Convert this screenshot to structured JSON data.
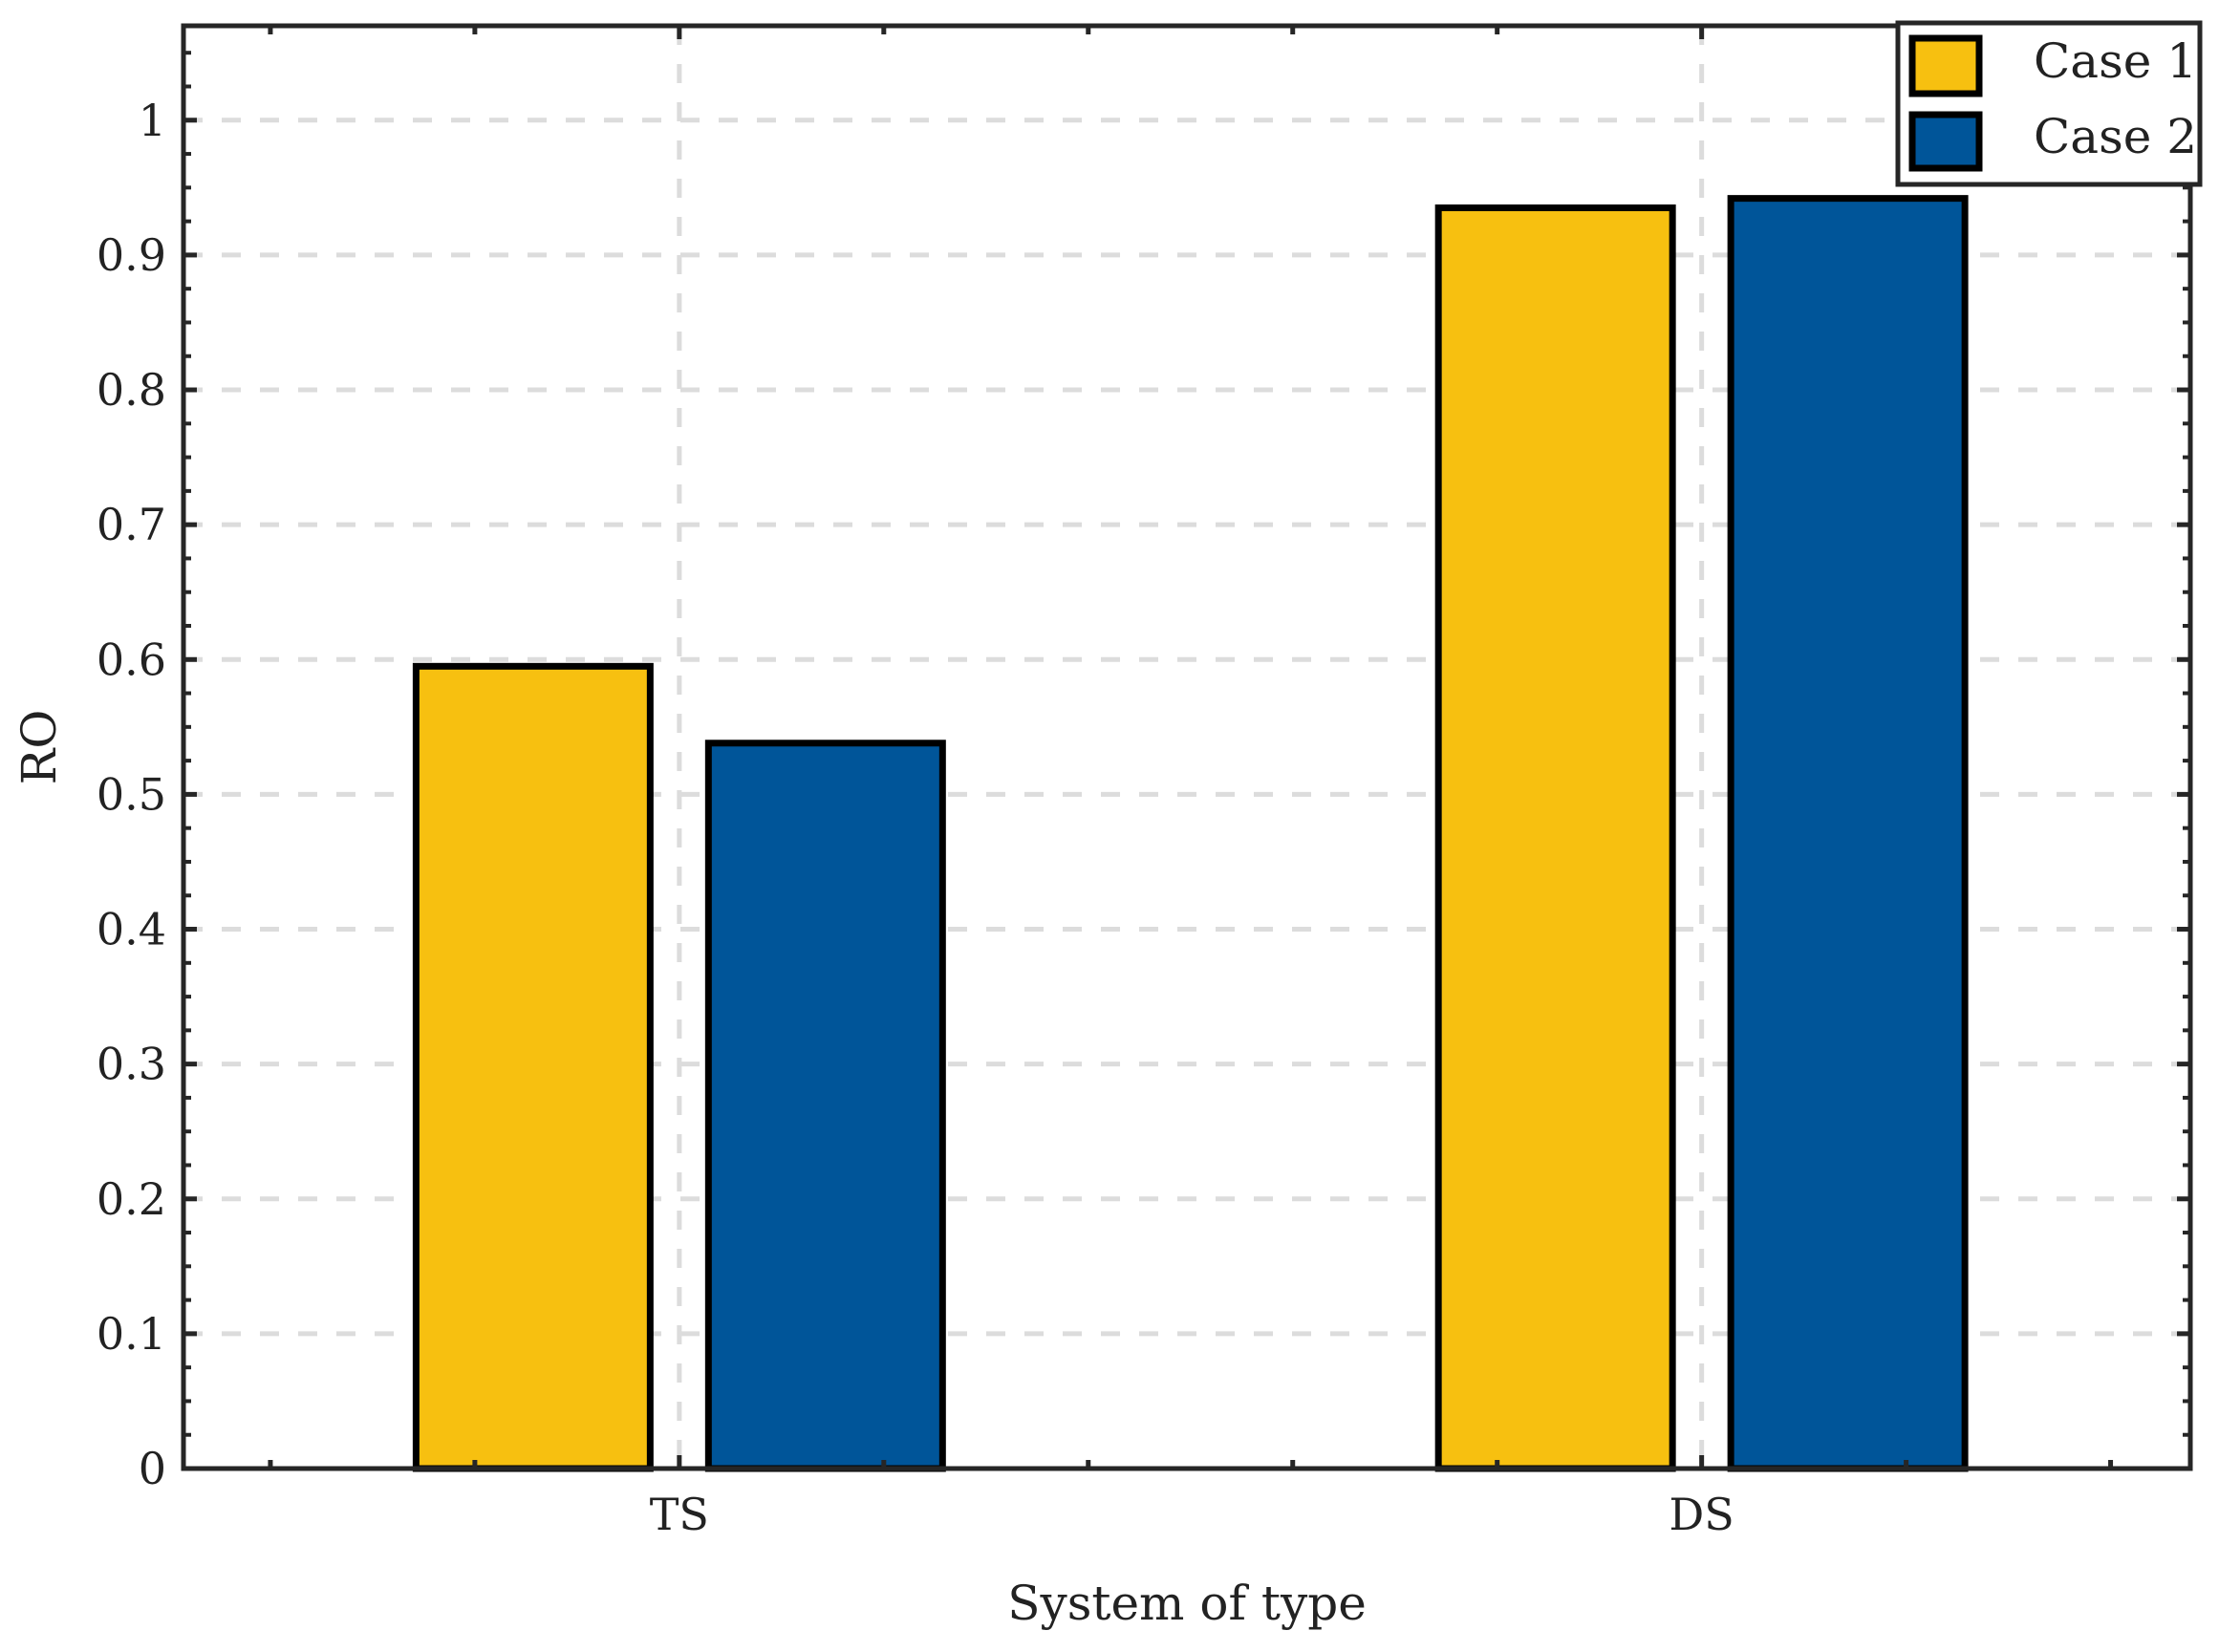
{
  "chart_data": {
    "type": "bar",
    "title": "",
    "xlabel": "System of type",
    "ylabel": "RO",
    "categories": [
      "TS",
      "DS"
    ],
    "series": [
      {
        "name": "Case 1",
        "values": [
          0.595,
          0.935
        ],
        "color": "#F7C010"
      },
      {
        "name": "Case 2",
        "values": [
          0.538,
          0.942
        ],
        "color": "#005599"
      }
    ],
    "ylim": [
      0,
      1.07
    ],
    "yticks": [
      "0",
      "0.1",
      "0.2",
      "0.3",
      "0.4",
      "0.5",
      "0.6",
      "0.7",
      "0.8",
      "0.9",
      "1"
    ],
    "grid": true,
    "legend": "top-right"
  }
}
